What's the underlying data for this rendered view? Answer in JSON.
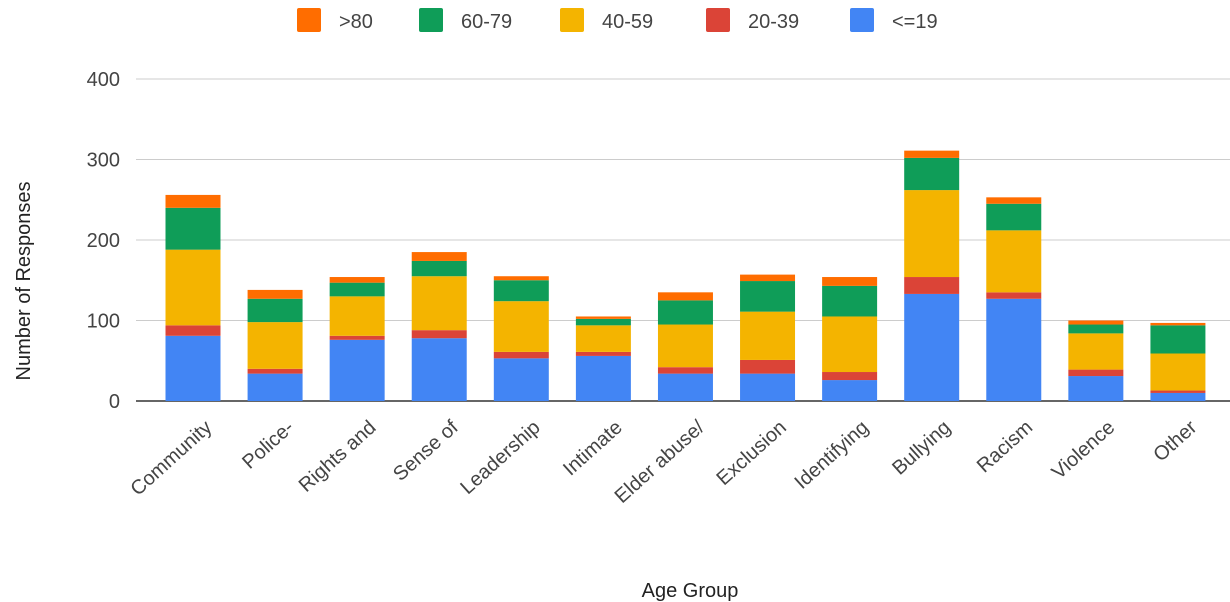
{
  "chart_data": {
    "type": "bar",
    "stacked": true,
    "title": "",
    "xlabel": "Age Group",
    "ylabel": "Number of Responses",
    "ylim": [
      0,
      400
    ],
    "yticks": [
      0,
      100,
      200,
      300,
      400
    ],
    "grid": true,
    "legend_position": "top",
    "categories": [
      "Community",
      "Police-",
      "Rights and",
      "Sense of",
      "Leadership",
      "Intimate",
      "Elder abuse/",
      "Exclusion",
      "Identifying",
      "Bullying",
      "Racism",
      "Violence",
      "Other"
    ],
    "series": [
      {
        "name": "<=19",
        "color": "#4285f4",
        "values": [
          81,
          34,
          76,
          78,
          53,
          56,
          34,
          34,
          26,
          133,
          127,
          31,
          10
        ]
      },
      {
        "name": "20-39",
        "color": "#db4437",
        "values": [
          13,
          6,
          5,
          10,
          8,
          5,
          8,
          17,
          10,
          21,
          8,
          8,
          3
        ]
      },
      {
        "name": "40-59",
        "color": "#f4b400",
        "values": [
          94,
          58,
          49,
          67,
          63,
          33,
          53,
          60,
          69,
          108,
          77,
          45,
          46
        ]
      },
      {
        "name": "60-79",
        "color": "#0f9d58",
        "values": [
          52,
          29,
          17,
          19,
          26,
          8,
          30,
          38,
          38,
          40,
          33,
          11,
          35
        ]
      },
      {
        "name": ">80",
        "color": "#ff6d00",
        "values": [
          16,
          11,
          7,
          11,
          5,
          3,
          10,
          8,
          11,
          9,
          8,
          5,
          3
        ]
      }
    ],
    "legend_order": [
      ">80",
      "60-79",
      "40-59",
      "20-39",
      "<=19"
    ]
  }
}
